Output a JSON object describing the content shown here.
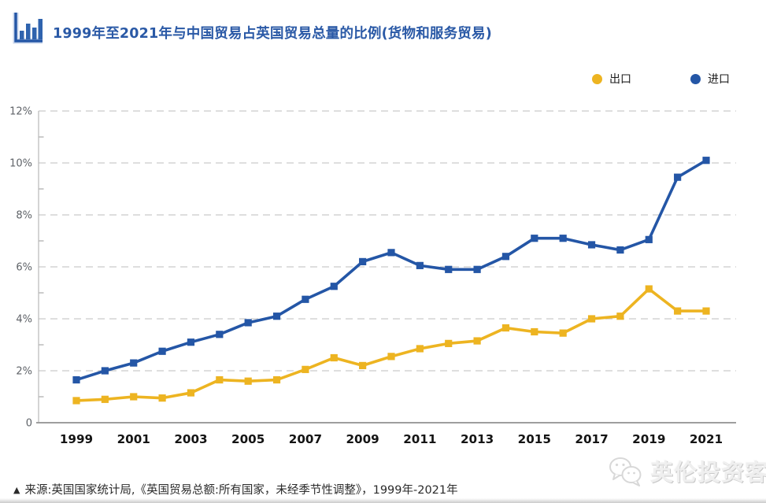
{
  "header": {
    "title": "1999年至2021年与中国贸易占英国贸易总量的比例(货物和服务贸易)",
    "title_color": "#2a59a6"
  },
  "legend": [
    {
      "label": "出口",
      "color": "#edb421"
    },
    {
      "label": "进口",
      "color": "#2456a6"
    }
  ],
  "chart_data": {
    "type": "line",
    "title": "1999年至2021年与中国贸易占英国贸易总量的比例(货物和服务贸易)",
    "x": [
      1999,
      2000,
      2001,
      2002,
      2003,
      2004,
      2005,
      2006,
      2007,
      2008,
      2009,
      2010,
      2011,
      2012,
      2013,
      2014,
      2015,
      2016,
      2017,
      2018,
      2019,
      2020,
      2021
    ],
    "series": [
      {
        "key": "export",
        "name": "出口",
        "color": "#edb421",
        "values": [
          0.85,
          0.9,
          1.0,
          0.95,
          1.15,
          1.65,
          1.6,
          1.65,
          2.05,
          2.5,
          2.2,
          2.55,
          2.85,
          3.05,
          3.15,
          3.65,
          3.5,
          3.45,
          4.0,
          4.1,
          5.15,
          4.3,
          4.3
        ]
      },
      {
        "key": "import",
        "name": "进口",
        "color": "#2456a6",
        "values": [
          1.65,
          2.0,
          2.3,
          2.75,
          3.1,
          3.4,
          3.85,
          4.1,
          4.75,
          5.25,
          6.2,
          6.55,
          6.05,
          5.9,
          5.9,
          6.4,
          7.1,
          7.1,
          6.85,
          6.65,
          7.05,
          9.45,
          10.1
        ]
      }
    ],
    "xlabel": "",
    "ylabel": "",
    "ylim": [
      0,
      12
    ],
    "ytick_step": 2,
    "ytick_labels": [
      "0",
      "2%",
      "4%",
      "6%",
      "8%",
      "10%",
      "12%"
    ],
    "xtick_labels": [
      "1999",
      "2001",
      "2003",
      "2005",
      "2007",
      "2009",
      "2011",
      "2013",
      "2015",
      "2017",
      "2019",
      "2021"
    ],
    "grid": "horizontal-dashed",
    "legend_position": "top-right",
    "marker": "square"
  },
  "footer": {
    "marker": "▲",
    "source": "来源:英国国家统计局,《英国贸易总额:所有国家，未经季节性调整》，1999年-2021年"
  },
  "watermark": {
    "text": "英伦投资客"
  },
  "colors": {
    "grid": "#d4d4d4",
    "y_axis": "#b8b8b8",
    "x_axis": "#9e9e9e",
    "y_tick_label": "#5f6368",
    "x_tick_label": "#141414"
  }
}
